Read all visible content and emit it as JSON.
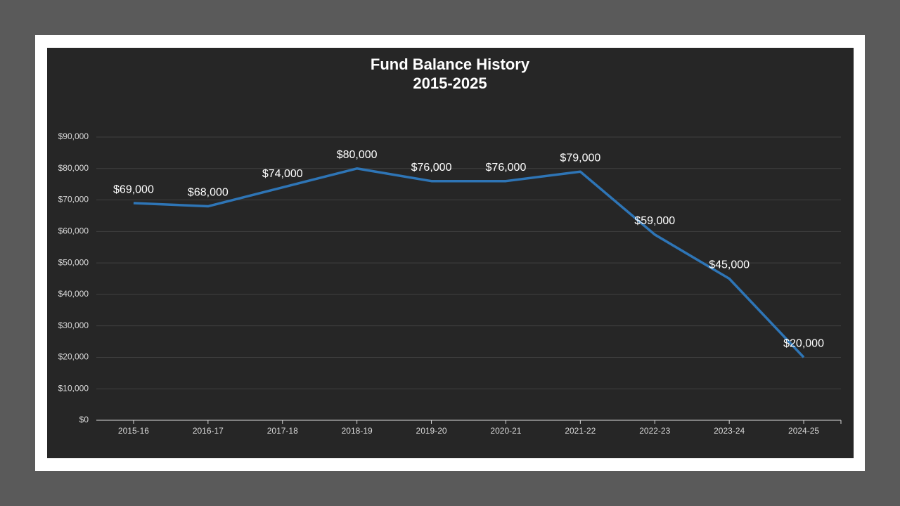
{
  "chart_data": {
    "type": "line",
    "title": "Fund Balance History",
    "subtitle": "2015-2025",
    "categories": [
      "2015-16",
      "2016-17",
      "2017-18",
      "2018-19",
      "2019-20",
      "2020-21",
      "2021-22",
      "2022-23",
      "2023-24",
      "2024-25"
    ],
    "series": [
      {
        "color": "#2e75b6",
        "values": [
          69000,
          68000,
          74000,
          80000,
          76000,
          76000,
          79000,
          59000,
          45000,
          20000
        ],
        "value_labels": [
          "$69,000",
          "$68,000",
          "$74,000",
          "$80,000",
          "$76,000",
          "$76,000",
          "$79,000",
          "$59,000",
          "$45,000",
          "$20,000"
        ]
      }
    ],
    "ylim": [
      0,
      90000
    ],
    "yticks": [
      {
        "value": 0,
        "label": "$0"
      },
      {
        "value": 10000,
        "label": "$10,000"
      },
      {
        "value": 20000,
        "label": "$20,000"
      },
      {
        "value": 30000,
        "label": "$30,000"
      },
      {
        "value": 40000,
        "label": "$40,000"
      },
      {
        "value": 50000,
        "label": "$50,000"
      },
      {
        "value": 60000,
        "label": "$60,000"
      },
      {
        "value": 70000,
        "label": "$70,000"
      },
      {
        "value": 80000,
        "label": "$80,000"
      },
      {
        "value": 90000,
        "label": "$90,000"
      }
    ],
    "grid": true
  }
}
